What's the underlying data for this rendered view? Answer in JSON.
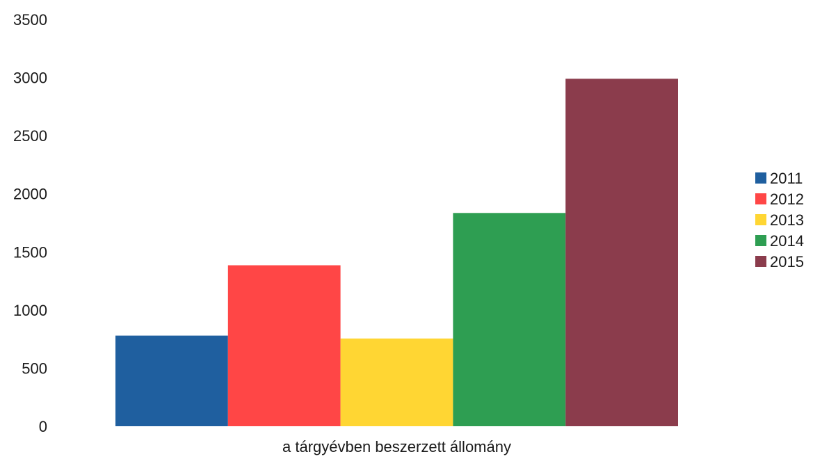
{
  "chart_data": {
    "type": "bar",
    "categories": [
      "a tárgyévben beszerzett állomány"
    ],
    "series": [
      {
        "name": "2011",
        "values": [
          780
        ],
        "color": "#1f5f9f"
      },
      {
        "name": "2012",
        "values": [
          1385
        ],
        "color": "#ff4646"
      },
      {
        "name": "2013",
        "values": [
          755
        ],
        "color": "#ffd633"
      },
      {
        "name": "2014",
        "values": [
          1835
        ],
        "color": "#2e9e52"
      },
      {
        "name": "2015",
        "values": [
          2990
        ],
        "color": "#8b3c4c"
      }
    ],
    "xlabel": "a tárgyévben beszerzett állomány",
    "ylabel": "",
    "ylim": [
      0,
      3500
    ],
    "yticks": [
      "0",
      "500",
      "1000",
      "1500",
      "2000",
      "2500",
      "3000",
      "3500"
    ],
    "grid": false,
    "legend_position": "right"
  }
}
